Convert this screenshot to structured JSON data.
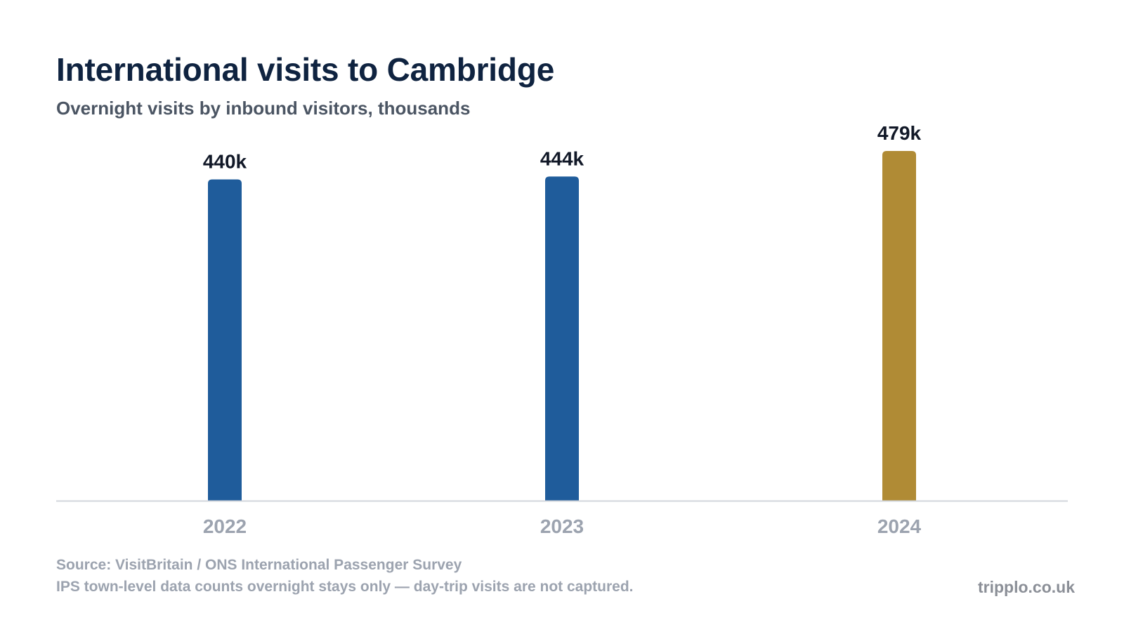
{
  "header": {
    "title": "International visits to Cambridge",
    "subtitle": "Overnight visits by inbound visitors, thousands"
  },
  "chart_data": {
    "type": "bar",
    "categories": [
      "2022",
      "2023",
      "2024"
    ],
    "values": [
      440,
      444,
      479
    ],
    "value_labels": [
      "440k",
      "444k",
      "479k"
    ],
    "bar_colors": [
      "#1f5c9b",
      "#1f5c9b",
      "#b08b35"
    ],
    "ylim": [
      0,
      479
    ],
    "grid": false,
    "title": "International visits to Cambridge",
    "subtitle": "Overnight visits by inbound visitors, thousands",
    "xlabel": "",
    "ylabel": ""
  },
  "footer": {
    "source": "Source: VisitBritain / ONS International Passenger Survey",
    "note": "IPS town-level data counts overnight stays only — day-trip visits are not captured.",
    "brand": "tripplo.co.uk"
  },
  "colors": {
    "axis": "#d1d5db",
    "title": "#0f2340",
    "muted": "#9ca3af"
  }
}
